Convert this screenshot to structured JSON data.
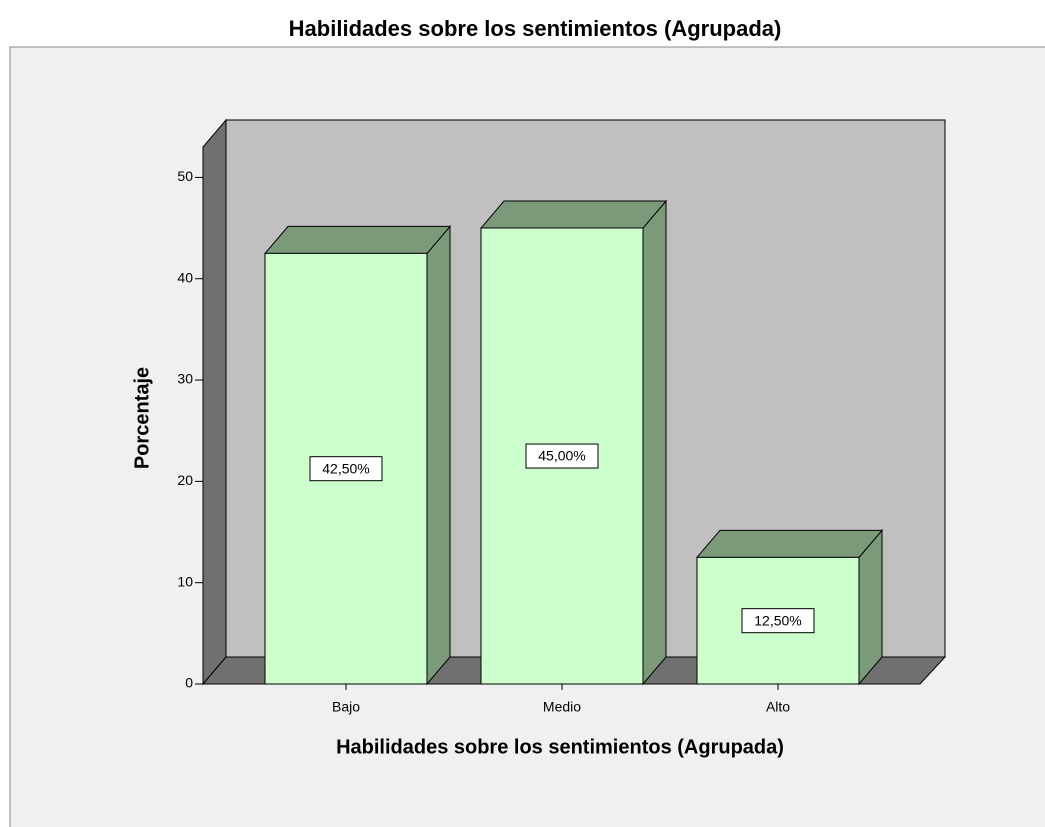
{
  "chart_data": {
    "type": "bar3d",
    "title": "Habilidades sobre los sentimientos (Agrupada)",
    "x_label": "Habilidades sobre los sentimientos (Agrupada)",
    "y_label": "Porcentaje",
    "categories": [
      "Bajo",
      "Medio",
      "Alto"
    ],
    "values": [
      42.5,
      45,
      12.5
    ],
    "value_labels": [
      "42,50%",
      "45,00%",
      "12,50%"
    ],
    "color": "#ccffcc",
    "ylim": [
      0,
      53
    ],
    "yticks": [
      0,
      10,
      20,
      30,
      40,
      50
    ]
  }
}
